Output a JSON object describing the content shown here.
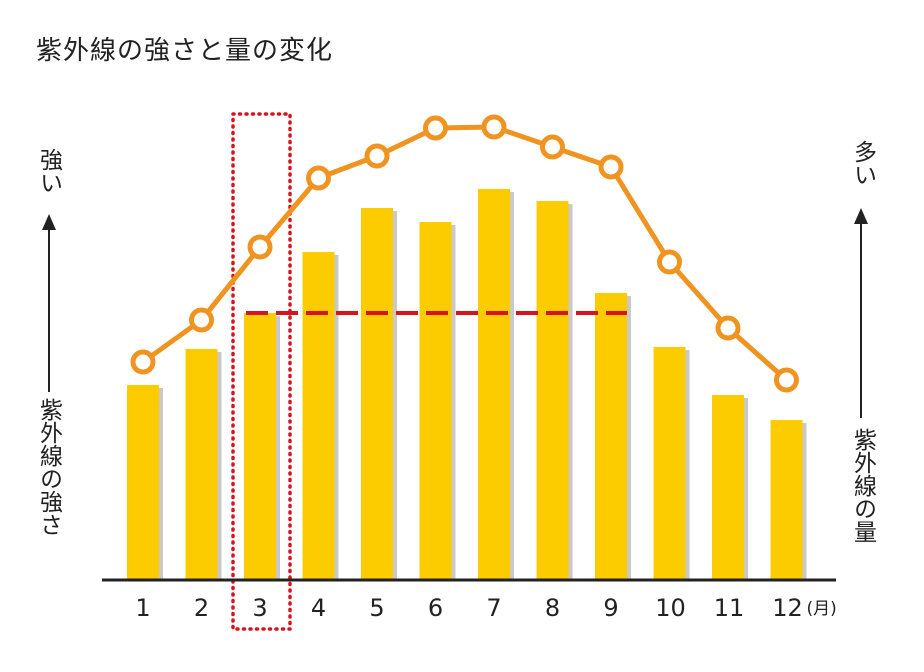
{
  "title": "紫外線の強さと量の変化",
  "left_axis": {
    "top_label": "強い",
    "bottom_label": "紫外線の強さ"
  },
  "right_axis": {
    "top_label": "多い",
    "bottom_label": "紫外線の量"
  },
  "x_unit": "(月)",
  "highlight_month": "3",
  "colors": {
    "bar": "#fdcc00",
    "bar_shadow": "#c9c9c9",
    "line": "#ef9421",
    "marker_fill": "#ffffff",
    "dashed_line": "#d7141e",
    "highlight_box": "#d7141e",
    "highlight_tick": "#3aa14a",
    "axis": "#222222"
  },
  "chart_data": {
    "type": "bar+line",
    "title": "紫外線の強さと量の変化",
    "categories": [
      "1",
      "2",
      "3",
      "4",
      "5",
      "6",
      "7",
      "8",
      "9",
      "10",
      "11",
      "12"
    ],
    "xlabel": "(月)",
    "series": [
      {
        "name": "紫外線の量",
        "type": "bar",
        "axis": "right",
        "values": [
          195,
          231,
          267,
          328,
          372,
          358,
          391,
          379,
          287,
          233,
          185,
          160
        ]
      },
      {
        "name": "紫外線の強さ",
        "type": "line",
        "axis": "left",
        "values": [
          218,
          260,
          333,
          402,
          424,
          452,
          453,
          433,
          413,
          318,
          252,
          200
        ]
      }
    ],
    "units_note": "relative values (no numeric axis shown); measured as pixel height above baseline",
    "annotations": [
      {
        "type": "dotted-box",
        "target": "3",
        "text": ""
      },
      {
        "type": "dashed-horizontal-line",
        "level_of": "bar 3",
        "from": "3",
        "to": "9"
      }
    ],
    "left_axis_label": "紫外線の強さ → 強い",
    "right_axis_label": "紫外線の量 → 多い",
    "ylim": [
      0,
      480
    ],
    "grid": false,
    "legend": "none"
  }
}
